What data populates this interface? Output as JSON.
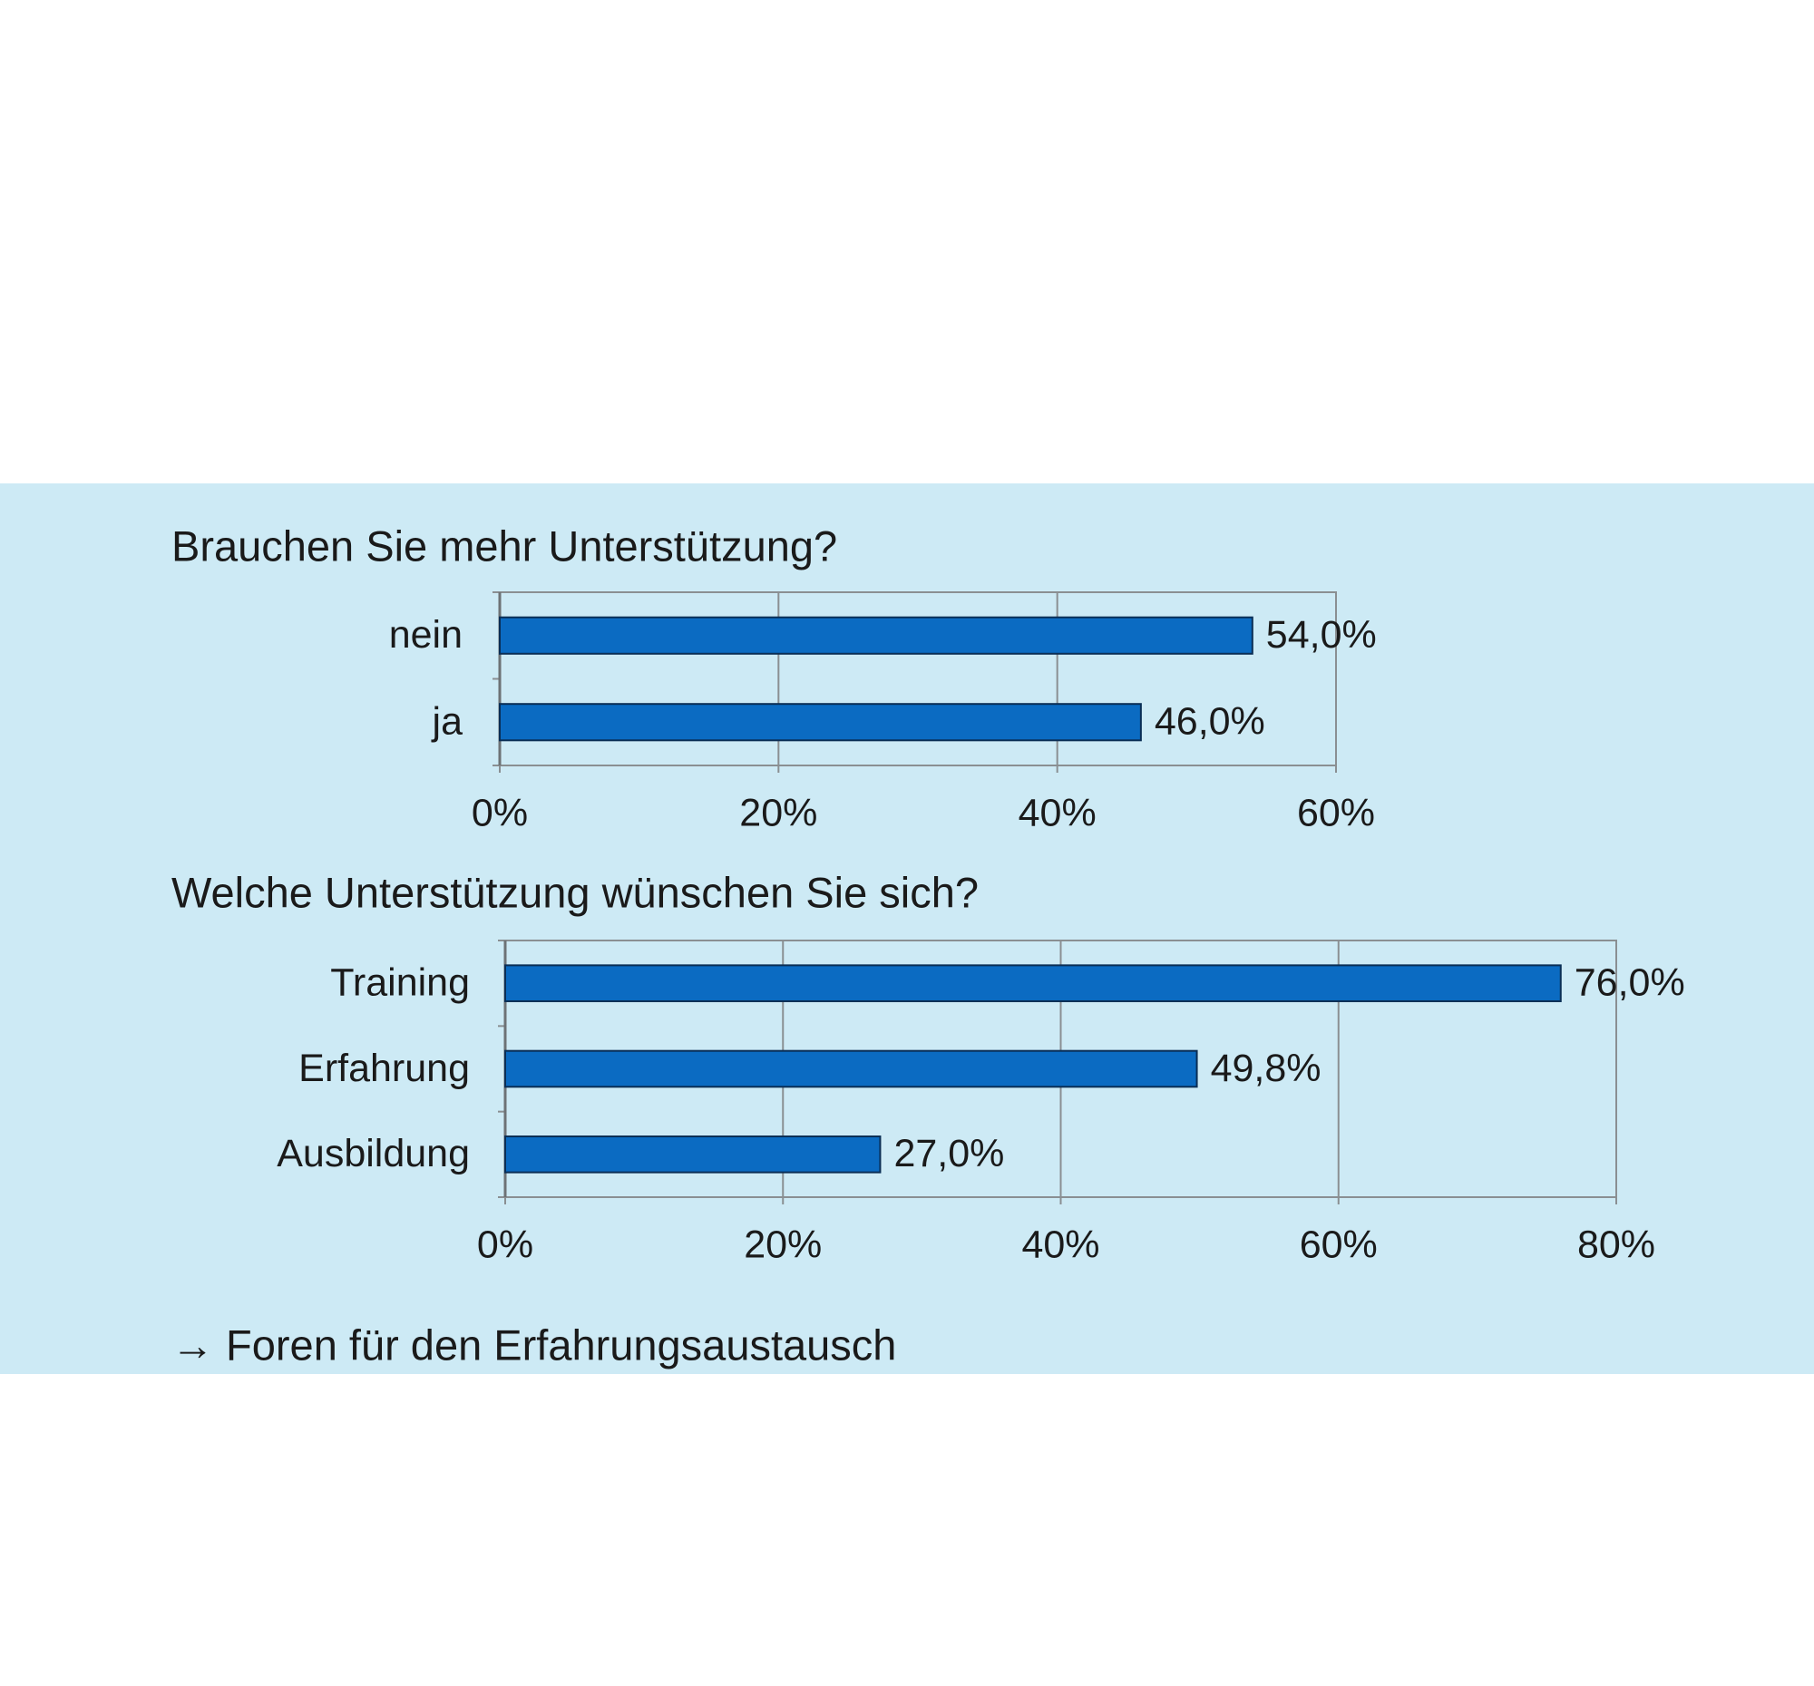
{
  "chart_data": [
    {
      "type": "bar",
      "orientation": "horizontal",
      "title": "Brauchen Sie mehr Unterstützung?",
      "categories": [
        "nein",
        "ja"
      ],
      "values": [
        54.0,
        46.0
      ],
      "value_labels": [
        "54,0%",
        "46,0%"
      ],
      "color": "#0b6bc2",
      "xlim": [
        0,
        60
      ],
      "xticks": [
        {
          "value": 0,
          "label": "0%"
        },
        {
          "value": 20,
          "label": "20%"
        },
        {
          "value": 40,
          "label": "40%"
        },
        {
          "value": 60,
          "label": "60%"
        }
      ],
      "grid": true
    },
    {
      "type": "bar",
      "orientation": "horizontal",
      "title": "Welche Unterstützung wünschen Sie sich?",
      "categories": [
        "Training",
        "Erfahrung",
        "Ausbildung"
      ],
      "values": [
        76.0,
        49.8,
        27.0
      ],
      "value_labels": [
        "76,0%",
        "49,8%",
        "27,0%"
      ],
      "color": "#0b6bc2",
      "xlim": [
        0,
        80
      ],
      "xticks": [
        {
          "value": 0,
          "label": "0%"
        },
        {
          "value": 20,
          "label": "20%"
        },
        {
          "value": 40,
          "label": "40%"
        },
        {
          "value": 60,
          "label": "60%"
        },
        {
          "value": 80,
          "label": "80%"
        }
      ],
      "grid": true
    }
  ],
  "footer": "→ Foren für den Erfahrungsaustausch"
}
